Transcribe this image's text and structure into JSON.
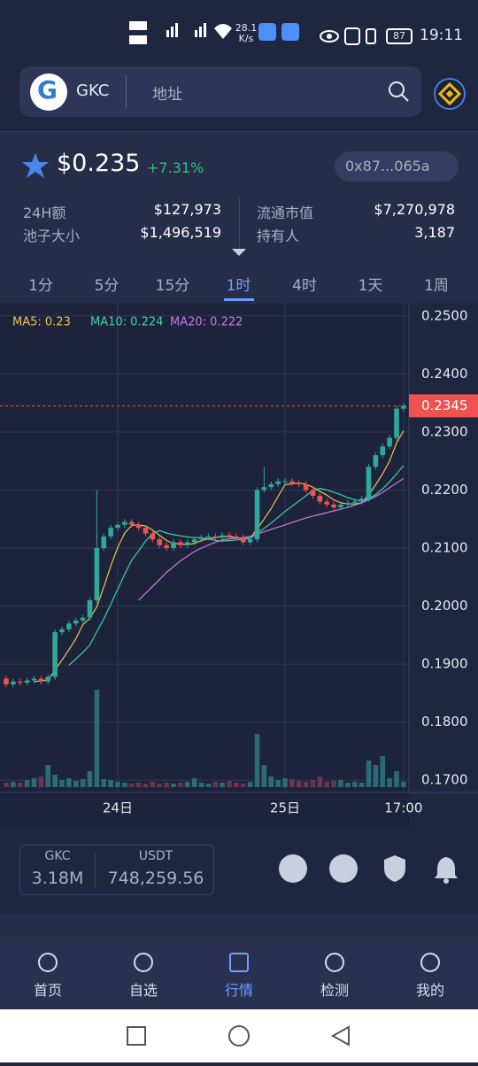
{
  "status_bar": {
    "network_speed": "28.1",
    "network_unit": "K/s",
    "battery": "87",
    "time": "19:11"
  },
  "search": {
    "token": "GKC",
    "placeholder": "地址"
  },
  "token": {
    "price": "$0.235",
    "change": "+7.31%",
    "address": "0x87...065a"
  },
  "stats": [
    {
      "label": "24H额",
      "value": "$127,973"
    },
    {
      "label": "流通市值",
      "value": "$7,270,978"
    },
    {
      "label": "池子大小",
      "value": "$1,496,519"
    },
    {
      "label": "持有人",
      "value": "3,187"
    }
  ],
  "timeframes": [
    "1分",
    "5分",
    "15分",
    "1时",
    "4时",
    "1天",
    "1周"
  ],
  "active_timeframe": 3,
  "chart_data": {
    "type": "candlestick",
    "categories": [
      null,
      null,
      null,
      null,
      null,
      null,
      null,
      null,
      null,
      null,
      null,
      null,
      null,
      null,
      null,
      null,
      "24日",
      null,
      null,
      null,
      null,
      null,
      null,
      null,
      null,
      null,
      null,
      null,
      null,
      null,
      null,
      null,
      null,
      null,
      null,
      null,
      null,
      null,
      null,
      null,
      "25日",
      null,
      null,
      null,
      null,
      null,
      null,
      null,
      null,
      null,
      null,
      null,
      null,
      null,
      null,
      null,
      null,
      "17:00"
    ],
    "open": [
      0.1875,
      0.1865,
      0.187,
      0.1868,
      0.1872,
      0.1875,
      0.187,
      0.1878,
      0.1955,
      0.196,
      0.197,
      0.1975,
      0.198,
      0.201,
      0.21,
      0.212,
      0.2135,
      0.214,
      0.2145,
      0.214,
      0.2135,
      0.2125,
      0.2115,
      0.2105,
      0.21,
      0.211,
      0.2105,
      0.211,
      0.2115,
      0.2118,
      0.212,
      0.2118,
      0.2122,
      0.212,
      0.2118,
      0.211,
      0.2115,
      0.22,
      0.2205,
      0.221,
      0.2215,
      0.2215,
      0.2212,
      0.221,
      0.22,
      0.219,
      0.218,
      0.2175,
      0.217,
      0.2175,
      0.2178,
      0.218,
      0.2185,
      0.224,
      0.226,
      0.2275,
      0.229,
      0.234
    ],
    "high": [
      0.188,
      0.1875,
      0.1875,
      0.1877,
      0.188,
      0.188,
      0.1883,
      0.196,
      0.1965,
      0.1975,
      0.198,
      0.1985,
      0.2015,
      0.22,
      0.2125,
      0.214,
      0.2145,
      0.215,
      0.215,
      0.2145,
      0.214,
      0.213,
      0.212,
      0.211,
      0.2115,
      0.2115,
      0.2115,
      0.212,
      0.2123,
      0.2125,
      0.2125,
      0.2127,
      0.2127,
      0.2125,
      0.2123,
      0.212,
      0.2205,
      0.224,
      0.2215,
      0.222,
      0.222,
      0.222,
      0.2217,
      0.2215,
      0.2205,
      0.2195,
      0.2185,
      0.218,
      0.218,
      0.2183,
      0.2185,
      0.219,
      0.2245,
      0.2265,
      0.228,
      0.2295,
      0.2345,
      0.235
    ],
    "low": [
      0.186,
      0.186,
      0.1863,
      0.1863,
      0.1867,
      0.1865,
      0.1865,
      0.1873,
      0.195,
      0.1955,
      0.1965,
      0.197,
      0.1975,
      0.2005,
      0.2095,
      0.2115,
      0.213,
      0.2135,
      0.2135,
      0.213,
      0.212,
      0.211,
      0.21,
      0.2095,
      0.2095,
      0.21,
      0.21,
      0.2105,
      0.211,
      0.2113,
      0.2113,
      0.2113,
      0.2115,
      0.2113,
      0.2105,
      0.2105,
      0.211,
      0.2195,
      0.22,
      0.2205,
      0.221,
      0.2207,
      0.2205,
      0.2195,
      0.2185,
      0.2175,
      0.217,
      0.2165,
      0.2165,
      0.217,
      0.2173,
      0.2175,
      0.218,
      0.2235,
      0.2255,
      0.227,
      0.2285,
      0.2335
    ],
    "close": [
      0.1865,
      0.187,
      0.1868,
      0.1872,
      0.1875,
      0.187,
      0.1878,
      0.1955,
      0.196,
      0.197,
      0.1975,
      0.198,
      0.201,
      0.21,
      0.212,
      0.2135,
      0.214,
      0.2145,
      0.214,
      0.2135,
      0.2125,
      0.2115,
      0.2105,
      0.21,
      0.211,
      0.2105,
      0.211,
      0.2115,
      0.2118,
      0.212,
      0.2118,
      0.2122,
      0.212,
      0.2118,
      0.211,
      0.2115,
      0.22,
      0.2205,
      0.221,
      0.2215,
      0.2215,
      0.2212,
      0.221,
      0.22,
      0.219,
      0.218,
      0.2175,
      0.217,
      0.2175,
      0.2178,
      0.218,
      0.2185,
      0.224,
      0.226,
      0.2275,
      0.229,
      0.234,
      0.2345
    ],
    "volume": [
      5,
      6,
      5,
      8,
      10,
      12,
      25,
      14,
      8,
      10,
      7,
      9,
      18,
      110,
      9,
      8,
      6,
      5,
      4,
      5,
      4,
      6,
      4,
      5,
      4,
      5,
      6,
      10,
      5,
      4,
      6,
      5,
      7,
      5,
      4,
      6,
      60,
      25,
      12,
      8,
      10,
      9,
      7,
      6,
      8,
      12,
      6,
      7,
      8,
      5,
      6,
      5,
      30,
      25,
      35,
      10,
      18,
      6
    ],
    "volume_lim": [
      0,
      120
    ],
    "series": [
      {
        "name": "MA5: 0.23",
        "color": "#f2c14e",
        "values": [
          null,
          null,
          null,
          null,
          0.187,
          0.1871,
          0.1873,
          0.189,
          0.1907,
          0.1925,
          0.1944,
          0.1968,
          0.1979,
          0.1999,
          0.2033,
          0.2069,
          0.2101,
          0.2126,
          0.2139,
          0.214,
          0.2138,
          0.2131,
          0.2122,
          0.2113,
          0.2108,
          0.2107,
          0.2106,
          0.2108,
          0.2113,
          0.2116,
          0.2118,
          0.212,
          0.212,
          0.2118,
          0.2116,
          0.2117,
          0.2133,
          0.215,
          0.2168,
          0.2189,
          0.2209,
          0.2211,
          0.2212,
          0.221,
          0.2205,
          0.2198,
          0.2191,
          0.2183,
          0.2178,
          0.2176,
          0.2176,
          0.2178,
          0.2192,
          0.2209,
          0.2228,
          0.225,
          0.2281,
          0.2302
        ]
      },
      {
        "name": "MA10: 0.224",
        "color": "#3fd3a6",
        "values": [
          null,
          null,
          null,
          null,
          null,
          null,
          null,
          null,
          null,
          0.1898,
          0.1909,
          0.192,
          0.1933,
          0.1956,
          0.1978,
          0.2003,
          0.2029,
          0.2055,
          0.2079,
          0.2095,
          0.2112,
          0.2125,
          0.213,
          0.2126,
          0.2123,
          0.2121,
          0.2119,
          0.2118,
          0.2118,
          0.2116,
          0.2113,
          0.2112,
          0.2113,
          0.2114,
          0.2115,
          0.2117,
          0.2125,
          0.2134,
          0.2143,
          0.2153,
          0.2163,
          0.2172,
          0.2181,
          0.219,
          0.2199,
          0.2203,
          0.22,
          0.2196,
          0.2192,
          0.2187,
          0.2183,
          0.2181,
          0.2185,
          0.2192,
          0.2202,
          0.2214,
          0.2228,
          0.2242
        ]
      },
      {
        "name": "MA20: 0.222",
        "color": "#c77ae6",
        "values": [
          null,
          null,
          null,
          null,
          null,
          null,
          null,
          null,
          null,
          null,
          null,
          null,
          null,
          null,
          null,
          null,
          null,
          null,
          null,
          0.201,
          0.2022,
          0.2034,
          0.2046,
          0.2058,
          0.2068,
          0.2078,
          0.2086,
          0.2094,
          0.21,
          0.2105,
          0.211,
          0.2114,
          0.2116,
          0.2117,
          0.2118,
          0.212,
          0.2124,
          0.2128,
          0.2132,
          0.2136,
          0.214,
          0.2144,
          0.2148,
          0.2152,
          0.2155,
          0.2158,
          0.2161,
          0.2164,
          0.2167,
          0.217,
          0.2174,
          0.2178,
          0.2183,
          0.2189,
          0.2196,
          0.2204,
          0.2212,
          0.222
        ]
      }
    ],
    "up_color": "#2fa79a",
    "down_color": "#ef5350",
    "ylim": [
      0.1679,
      0.2521
    ],
    "yticks": [
      {
        "value": 0.25,
        "label": "0.2500"
      },
      {
        "value": 0.24,
        "label": "0.2400"
      },
      {
        "value": 0.23,
        "label": "0.2300"
      },
      {
        "value": 0.22,
        "label": "0.2200"
      },
      {
        "value": 0.21,
        "label": "0.2100"
      },
      {
        "value": 0.2,
        "label": "0.2000"
      },
      {
        "value": 0.19,
        "label": "0.1900"
      },
      {
        "value": 0.18,
        "label": "0.1800"
      },
      {
        "value": 0.17,
        "label": "0.1700"
      }
    ],
    "last_price": 0.2345,
    "grid": true
  },
  "summary": {
    "base": "GKC",
    "base_amount": "3.18M",
    "quote": "USDT",
    "quote_amount": "748,259.56"
  },
  "nav": [
    "首页",
    "自选",
    "行情",
    "检测",
    "我的"
  ],
  "active_nav": 2
}
